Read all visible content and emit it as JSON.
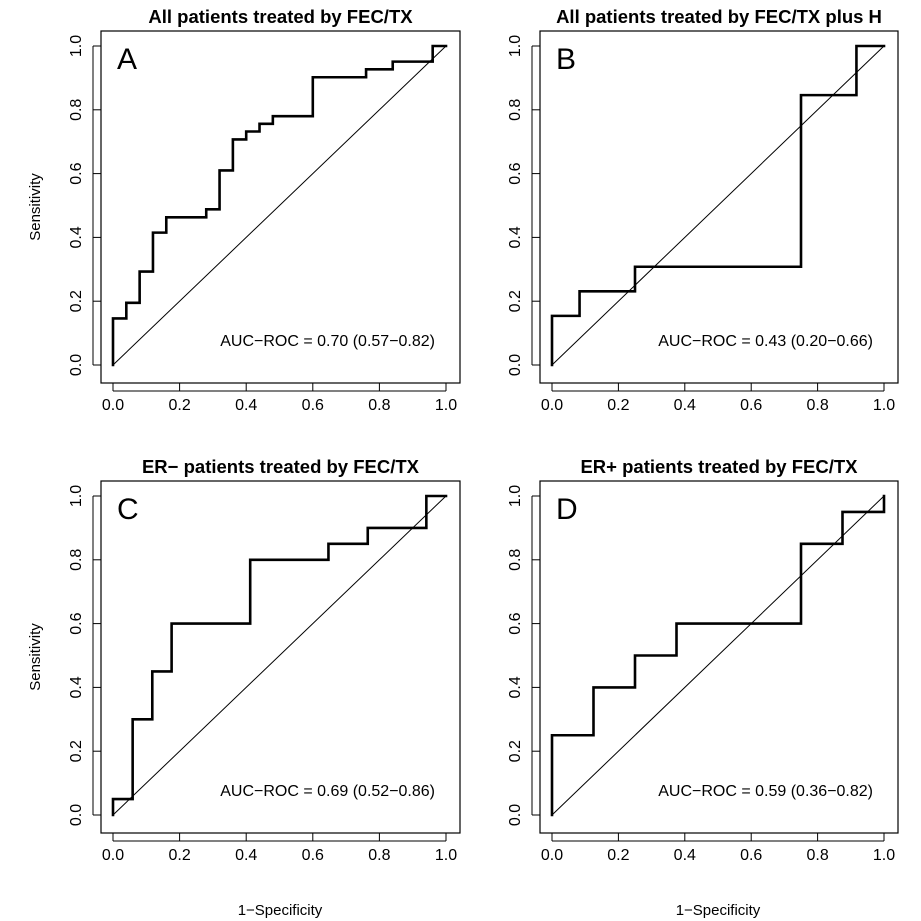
{
  "axis_labels": {
    "y": "Sensitivity",
    "x": "1−Specificity"
  },
  "chart_data": [
    {
      "type": "line",
      "panel": "A",
      "title": "All patients treated by FEC/TX",
      "annotation": "AUC−ROC = 0.70 (0.57−0.82)",
      "xlim": [
        0,
        1
      ],
      "ylim": [
        0,
        1
      ],
      "x_ticks": [
        "0.0",
        "0.2",
        "0.4",
        "0.6",
        "0.8",
        "1.0"
      ],
      "y_ticks": [
        "0.0",
        "0.2",
        "0.4",
        "0.6",
        "0.8",
        "1.0"
      ],
      "reference_line": "diagonal",
      "series": [
        {
          "x": [
            0.0,
            0.0,
            0.04,
            0.04,
            0.08,
            0.08,
            0.12,
            0.12,
            0.16,
            0.16,
            0.28,
            0.28,
            0.32,
            0.32,
            0.36,
            0.36,
            0.4,
            0.4,
            0.44,
            0.44,
            0.48,
            0.48,
            0.6,
            0.6,
            0.76,
            0.76,
            0.84,
            0.84,
            0.96,
            0.96,
            1.0
          ],
          "y": [
            0.0,
            0.146,
            0.146,
            0.195,
            0.195,
            0.293,
            0.293,
            0.415,
            0.415,
            0.463,
            0.463,
            0.488,
            0.488,
            0.61,
            0.61,
            0.707,
            0.707,
            0.732,
            0.732,
            0.756,
            0.756,
            0.78,
            0.78,
            0.902,
            0.902,
            0.927,
            0.927,
            0.951,
            0.951,
            1.0,
            1.0
          ]
        }
      ]
    },
    {
      "type": "line",
      "panel": "B",
      "title": "All patients treated by FEC/TX plus H",
      "annotation": "AUC−ROC = 0.43 (0.20−0.66)",
      "xlim": [
        0,
        1
      ],
      "ylim": [
        0,
        1
      ],
      "x_ticks": [
        "0.0",
        "0.2",
        "0.4",
        "0.6",
        "0.8",
        "1.0"
      ],
      "y_ticks": [
        "0.0",
        "0.2",
        "0.4",
        "0.6",
        "0.8",
        "1.0"
      ],
      "reference_line": "diagonal",
      "series": [
        {
          "x": [
            0.0,
            0.0,
            0.083,
            0.083,
            0.25,
            0.25,
            0.75,
            0.75,
            0.917,
            0.917,
            1.0
          ],
          "y": [
            0.0,
            0.154,
            0.154,
            0.231,
            0.231,
            0.308,
            0.308,
            0.846,
            0.846,
            1.0,
            1.0
          ]
        }
      ]
    },
    {
      "type": "line",
      "panel": "C",
      "title": "ER− patients treated by FEC/TX",
      "annotation": "AUC−ROC = 0.69 (0.52−0.86)",
      "xlim": [
        0,
        1
      ],
      "ylim": [
        0,
        1
      ],
      "x_ticks": [
        "0.0",
        "0.2",
        "0.4",
        "0.6",
        "0.8",
        "1.0"
      ],
      "y_ticks": [
        "0.0",
        "0.2",
        "0.4",
        "0.6",
        "0.8",
        "1.0"
      ],
      "reference_line": "diagonal",
      "series": [
        {
          "x": [
            0.0,
            0.0,
            0.059,
            0.059,
            0.118,
            0.118,
            0.176,
            0.176,
            0.412,
            0.412,
            0.647,
            0.647,
            0.765,
            0.765,
            0.941,
            0.941,
            1.0
          ],
          "y": [
            0.0,
            0.05,
            0.05,
            0.3,
            0.3,
            0.45,
            0.45,
            0.6,
            0.6,
            0.8,
            0.8,
            0.85,
            0.85,
            0.9,
            0.9,
            1.0,
            1.0
          ]
        }
      ]
    },
    {
      "type": "line",
      "panel": "D",
      "title": "ER+ patients treated by FEC/TX",
      "annotation": "AUC−ROC = 0.59 (0.36−0.82)",
      "xlim": [
        0,
        1
      ],
      "ylim": [
        0,
        1
      ],
      "x_ticks": [
        "0.0",
        "0.2",
        "0.4",
        "0.6",
        "0.8",
        "1.0"
      ],
      "y_ticks": [
        "0.0",
        "0.2",
        "0.4",
        "0.6",
        "0.8",
        "1.0"
      ],
      "reference_line": "diagonal",
      "series": [
        {
          "x": [
            0.0,
            0.0,
            0.125,
            0.125,
            0.25,
            0.25,
            0.375,
            0.375,
            0.75,
            0.75,
            0.875,
            0.875,
            1.0,
            1.0
          ],
          "y": [
            0.0,
            0.25,
            0.25,
            0.4,
            0.4,
            0.5,
            0.5,
            0.6,
            0.6,
            0.85,
            0.85,
            0.95,
            0.95,
            1.0
          ]
        }
      ]
    }
  ]
}
